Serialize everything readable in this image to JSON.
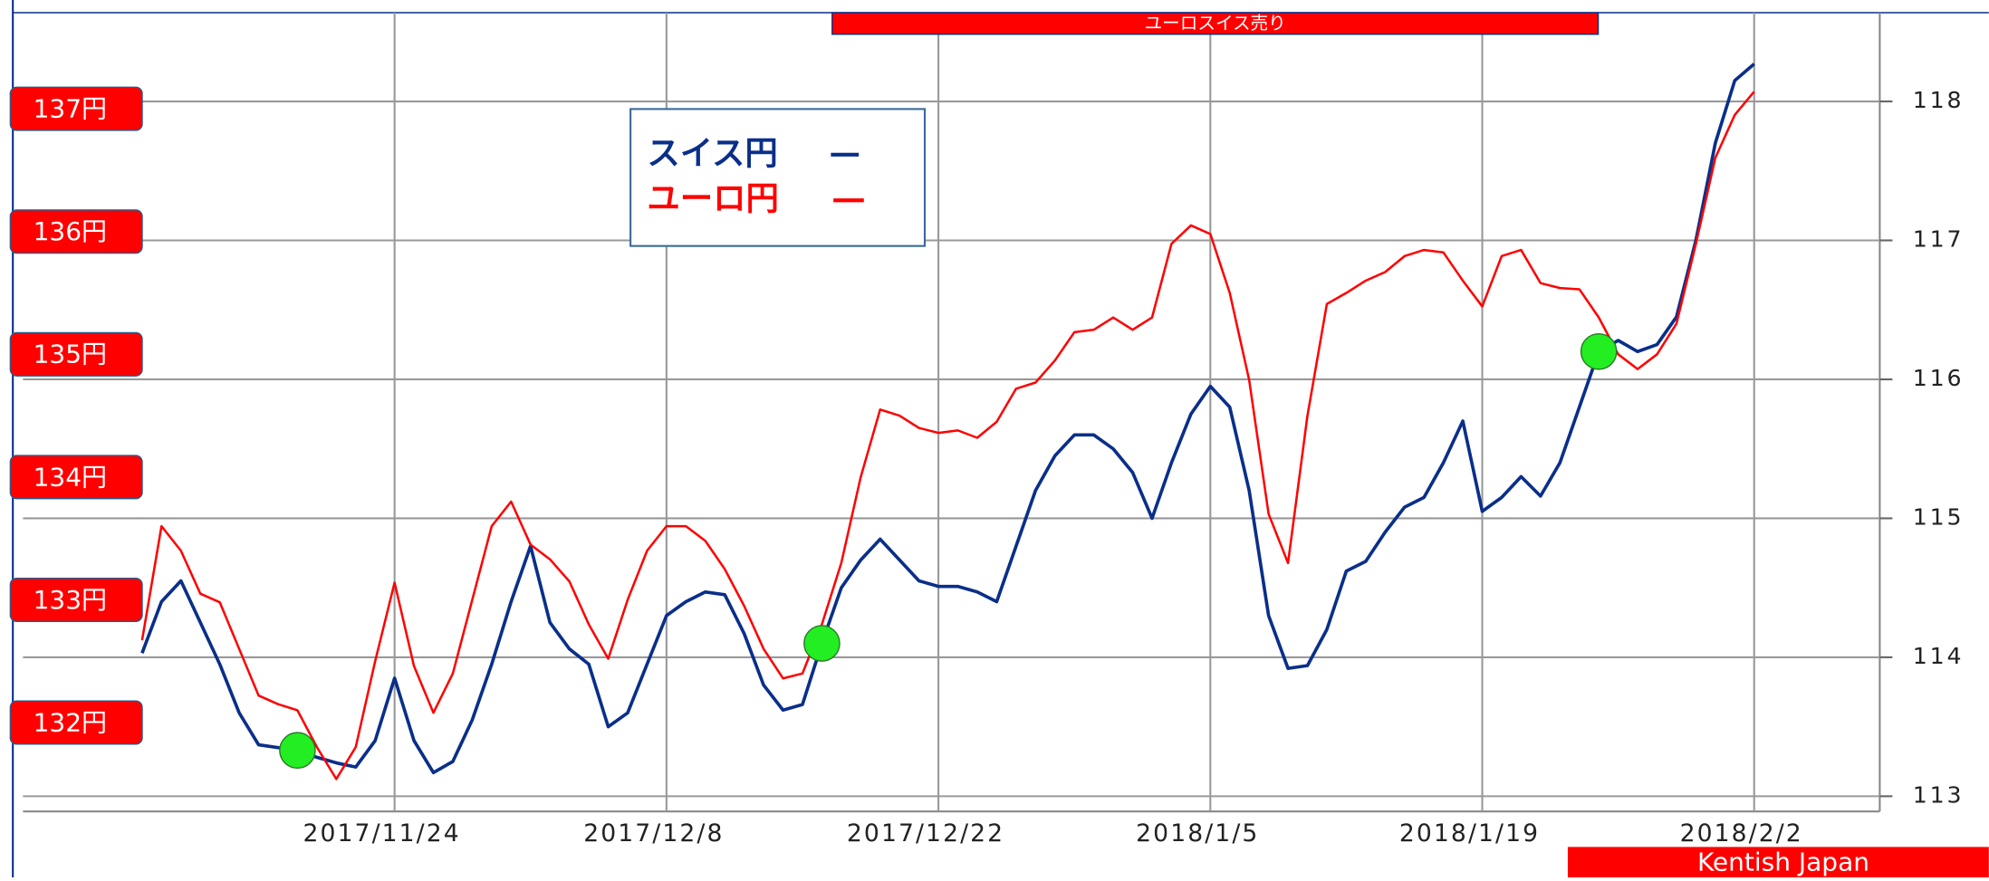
{
  "chart_data": {
    "type": "line",
    "banner": "ユーロスイス売り",
    "credit": "Kentish Japan",
    "x": [
      "2017/11/11",
      "2017/11/12",
      "2017/11/13",
      "2017/11/14",
      "2017/11/15",
      "2017/11/16",
      "2017/11/17",
      "2017/11/18",
      "2017/11/19",
      "2017/11/20",
      "2017/11/21",
      "2017/11/22",
      "2017/11/23",
      "2017/11/24",
      "2017/11/25",
      "2017/11/26",
      "2017/11/27",
      "2017/11/28",
      "2017/11/29",
      "2017/11/30",
      "2017/12/1",
      "2017/12/2",
      "2017/12/3",
      "2017/12/4",
      "2017/12/5",
      "2017/12/6",
      "2017/12/7",
      "2017/12/8",
      "2017/12/9",
      "2017/12/10",
      "2017/12/11",
      "2017/12/12",
      "2017/12/13",
      "2017/12/14",
      "2017/12/15",
      "2017/12/16",
      "2017/12/17",
      "2017/12/18",
      "2017/12/19",
      "2017/12/20",
      "2017/12/21",
      "2017/12/22",
      "2017/12/23",
      "2017/12/24",
      "2017/12/25",
      "2017/12/26",
      "2017/12/27",
      "2017/12/28",
      "2017/12/29",
      "2017/12/30",
      "2017/12/31",
      "2018/1/1",
      "2018/1/2",
      "2018/1/3",
      "2018/1/4",
      "2018/1/5",
      "2018/1/6",
      "2018/1/7",
      "2018/1/8",
      "2018/1/9",
      "2018/1/10",
      "2018/1/11",
      "2018/1/12",
      "2018/1/13",
      "2018/1/14",
      "2018/1/15",
      "2018/1/16",
      "2018/1/17",
      "2018/1/18",
      "2018/1/19",
      "2018/1/20",
      "2018/1/21",
      "2018/1/22",
      "2018/1/23",
      "2018/1/24",
      "2018/1/25",
      "2018/1/26",
      "2018/1/27",
      "2018/1/28",
      "2018/1/29",
      "2018/1/30",
      "2018/1/31",
      "2018/2/1",
      "2018/2/2"
    ],
    "xticks": [
      {
        "value": "2017/11/24",
        "label": "2017/11/24"
      },
      {
        "value": "2017/12/8",
        "label": "2017/12/8"
      },
      {
        "value": "2017/12/22",
        "label": "2017/12/22"
      },
      {
        "value": "2018/1/5",
        "label": "2018/1/5"
      },
      {
        "value": "2018/1/19",
        "label": "2018/1/19"
      },
      {
        "value": "2018/2/2",
        "label": "2018/2/2"
      }
    ],
    "ylim": [
      131.4,
      137.06
    ],
    "yticks": [
      {
        "value": 132,
        "label": "132円"
      },
      {
        "value": 133,
        "label": "133円"
      },
      {
        "value": 134,
        "label": "134円"
      },
      {
        "value": 135,
        "label": "135円"
      },
      {
        "value": 136,
        "label": "136円"
      },
      {
        "value": 137,
        "label": "137円"
      }
    ],
    "y2lim": [
      113,
      118
    ],
    "y2ticks": [
      113,
      114,
      115,
      116,
      117,
      118
    ],
    "grid": true,
    "series": [
      {
        "name": "スイス円",
        "color": "#0a2f8a",
        "axis": "y2",
        "values": [
          114.03,
          114.4,
          114.55,
          114.25,
          113.95,
          113.6,
          113.37,
          113.35,
          113.33,
          113.28,
          113.24,
          113.21,
          113.4,
          113.85,
          113.4,
          113.17,
          113.25,
          113.55,
          113.95,
          114.4,
          114.8,
          114.25,
          114.06,
          113.95,
          113.5,
          113.6,
          113.95,
          114.3,
          114.4,
          114.47,
          114.45,
          114.17,
          113.8,
          113.62,
          113.66,
          114.1,
          114.5,
          114.7,
          114.85,
          114.7,
          114.55,
          114.51,
          114.51,
          114.47,
          114.4,
          114.8,
          115.2,
          115.45,
          115.6,
          115.6,
          115.5,
          115.33,
          115.0,
          115.4,
          115.75,
          115.95,
          115.8,
          115.2,
          114.3,
          113.92,
          113.94,
          114.2,
          114.62,
          114.69,
          114.9,
          115.08,
          115.15,
          115.4,
          115.7,
          115.05,
          115.15,
          115.3,
          115.16,
          115.4,
          115.8,
          116.2,
          116.28,
          116.2,
          116.25,
          116.45,
          117.0,
          117.7,
          118.15,
          118.27
        ]
      },
      {
        "name": "ユーロ円",
        "color": "#ff0000",
        "values": [
          132.67,
          133.6,
          133.4,
          133.05,
          132.98,
          132.6,
          132.22,
          132.15,
          132.1,
          131.8,
          131.54,
          131.8,
          132.5,
          133.14,
          132.46,
          132.08,
          132.4,
          133.0,
          133.6,
          133.8,
          133.45,
          133.33,
          133.15,
          132.8,
          132.52,
          133.0,
          133.4,
          133.6,
          133.6,
          133.48,
          133.25,
          132.95,
          132.6,
          132.36,
          132.4,
          132.8,
          133.3,
          134.0,
          134.55,
          134.5,
          134.4,
          134.36,
          134.38,
          134.32,
          134.45,
          134.72,
          134.77,
          134.95,
          135.18,
          135.2,
          135.3,
          135.2,
          135.3,
          135.9,
          136.05,
          135.98,
          135.5,
          134.79,
          133.7,
          133.3,
          134.5,
          135.41,
          135.5,
          135.6,
          135.67,
          135.8,
          135.85,
          135.83,
          135.6,
          135.39,
          135.8,
          135.85,
          135.58,
          135.54,
          135.53,
          135.3,
          135.0,
          134.88,
          135.0,
          135.25,
          135.9,
          136.6,
          136.95,
          137.14
        ]
      }
    ],
    "signals": {
      "series": 0,
      "color": "#22ee22",
      "x": [
        "2017/11/19",
        "2017/12/16",
        "2018/1/25"
      ]
    }
  }
}
